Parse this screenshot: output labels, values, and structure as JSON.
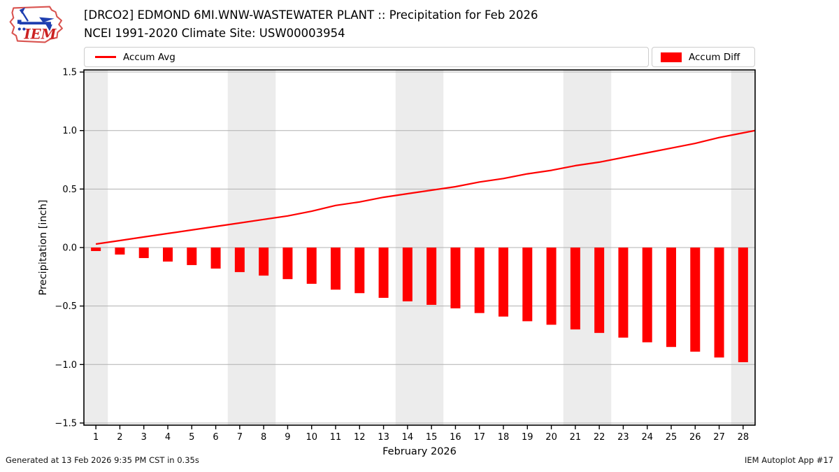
{
  "header": {
    "title_line1": "[DRCO2] EDMOND 6MI.WNW-WASTEWATER PLANT :: Precipitation for Feb 2026",
    "title_line2": "NCEI 1991-2020 Climate Site: USW00003954",
    "logo_text": "IEM"
  },
  "legend": {
    "avg_label": "Accum Avg",
    "diff_label": "Accum Diff"
  },
  "footer": {
    "left": "Generated at 13 Feb 2026 9:35 PM CST in 0.35s",
    "right": "IEM Autoplot App #17"
  },
  "colors": {
    "accent_red": "#ff0000",
    "grid": "#b0b0b0",
    "weekend_band": "#ececec",
    "axis": "#000000",
    "logo_red": "#d9534f",
    "logo_blue": "#1f3fb0"
  },
  "chart_data": {
    "type": "bar",
    "title": "[DRCO2] EDMOND 6MI.WNW-WASTEWATER PLANT :: Precipitation for Feb 2026",
    "subtitle": "NCEI 1991-2020 Climate Site: USW00003954",
    "xlabel": "February 2026",
    "ylabel": "Precipitation [inch]",
    "ylim": [
      -1.55,
      1.55
    ],
    "grid": "horizontal",
    "legend_position": "top",
    "x": [
      1,
      2,
      3,
      4,
      5,
      6,
      7,
      8,
      9,
      10,
      11,
      12,
      13,
      14,
      15,
      16,
      17,
      18,
      19,
      20,
      21,
      22,
      23,
      24,
      25,
      26,
      27,
      28
    ],
    "yticks": [
      {
        "v": -1.5,
        "label": "−1.5"
      },
      {
        "v": -1.0,
        "label": "−1.0"
      },
      {
        "v": -0.5,
        "label": "−0.5"
      },
      {
        "v": 0.0,
        "label": "0.0"
      },
      {
        "v": 0.5,
        "label": "0.5"
      },
      {
        "v": 1.0,
        "label": "1.0"
      },
      {
        "v": 1.5,
        "label": "1.5"
      }
    ],
    "weekend_bands": [
      [
        0.5,
        1.5
      ],
      [
        6.5,
        8.5
      ],
      [
        13.5,
        15.5
      ],
      [
        20.5,
        22.5
      ],
      [
        27.5,
        28.5
      ]
    ],
    "series": [
      {
        "name": "Accum Avg",
        "type": "line",
        "color": "#ff0000",
        "values": [
          0.03,
          0.06,
          0.09,
          0.12,
          0.15,
          0.18,
          0.21,
          0.24,
          0.27,
          0.31,
          0.36,
          0.39,
          0.43,
          0.46,
          0.49,
          0.52,
          0.56,
          0.59,
          0.63,
          0.66,
          0.7,
          0.73,
          0.77,
          0.81,
          0.85,
          0.89,
          0.94,
          0.98
        ],
        "end_point": {
          "x": 28.5,
          "value": 1.0
        }
      },
      {
        "name": "Accum Diff",
        "type": "bar",
        "color": "#ff0000",
        "values": [
          -0.03,
          -0.06,
          -0.09,
          -0.12,
          -0.15,
          -0.18,
          -0.21,
          -0.24,
          -0.27,
          -0.31,
          -0.36,
          -0.39,
          -0.43,
          -0.46,
          -0.49,
          -0.52,
          -0.56,
          -0.59,
          -0.63,
          -0.66,
          -0.7,
          -0.73,
          -0.77,
          -0.81,
          -0.85,
          -0.89,
          -0.94,
          -0.98
        ]
      }
    ]
  }
}
